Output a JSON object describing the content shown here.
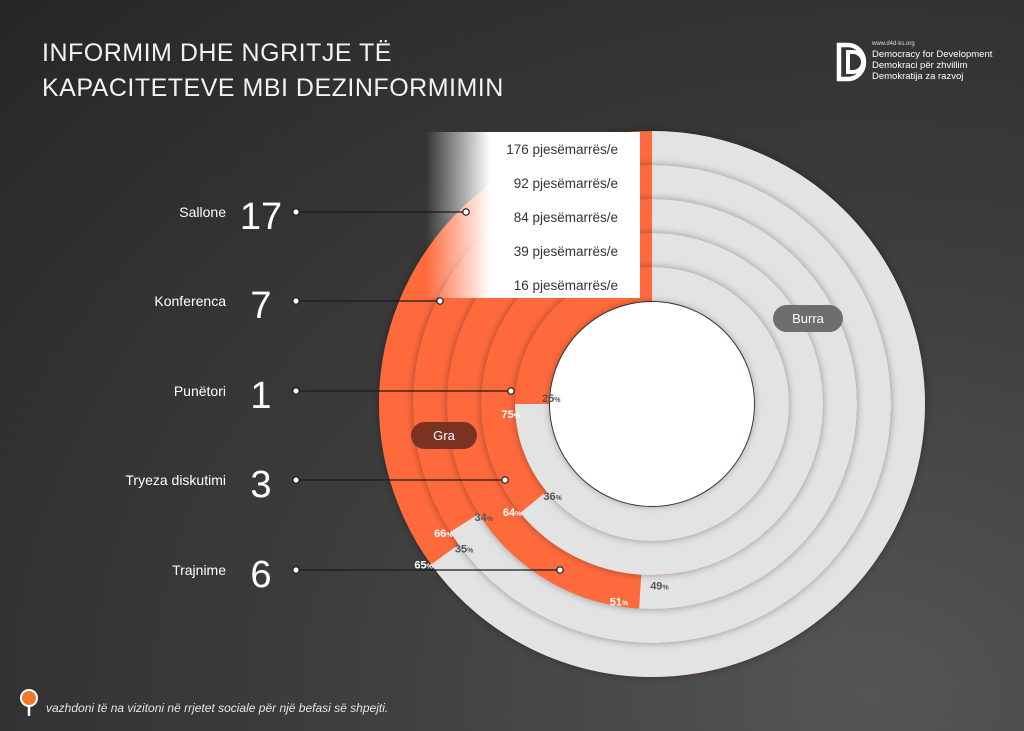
{
  "title": {
    "line1": "INFORMIM DHE NGRITJE TË",
    "line2": "KAPACITETEVE MBI DEZINFORMIMIN"
  },
  "logo": {
    "url": "www.d4d-ks.org",
    "line1": "Democracy for Development",
    "line2": "Demokraci për zhvillim",
    "line3": "Demokratija za razvoj",
    "icon": "d4d-logo-icon"
  },
  "footer": {
    "text": "vazhdoni të na vizitoni në rrjetet sociale për një befasi së shpejti.",
    "icon": "magnifier-icon"
  },
  "colors": {
    "female": "#ff6b3d",
    "male": "#e3e3e3",
    "legend_female_bg": "#7a3323",
    "legend_male_bg": "#6e6e6e",
    "background": "#333333"
  },
  "chart_data": {
    "type": "radial-bar",
    "legend": {
      "female": "Gra",
      "male": "Burra"
    },
    "series": [
      {
        "category": "Sallone",
        "count": 17,
        "participants": "176 pjesëmarrës/e",
        "female_pct": 65,
        "male_pct": 35
      },
      {
        "category": "Konferenca",
        "count": 7,
        "participants": "92 pjesëmarrës/e",
        "female_pct": 66,
        "male_pct": 34
      },
      {
        "category": "Punëtori",
        "count": 1,
        "participants": "84 pjesëmarrës/e",
        "female_pct": 51,
        "male_pct": 49
      },
      {
        "category": "Tryeza diskutimi",
        "count": 3,
        "participants": "39 pjesëmarrës/e",
        "female_pct": 64,
        "male_pct": 36
      },
      {
        "category": "Trajnime",
        "count": 6,
        "participants": "16 pjesëmarrës/e",
        "female_pct": 75,
        "male_pct": 25
      }
    ]
  }
}
